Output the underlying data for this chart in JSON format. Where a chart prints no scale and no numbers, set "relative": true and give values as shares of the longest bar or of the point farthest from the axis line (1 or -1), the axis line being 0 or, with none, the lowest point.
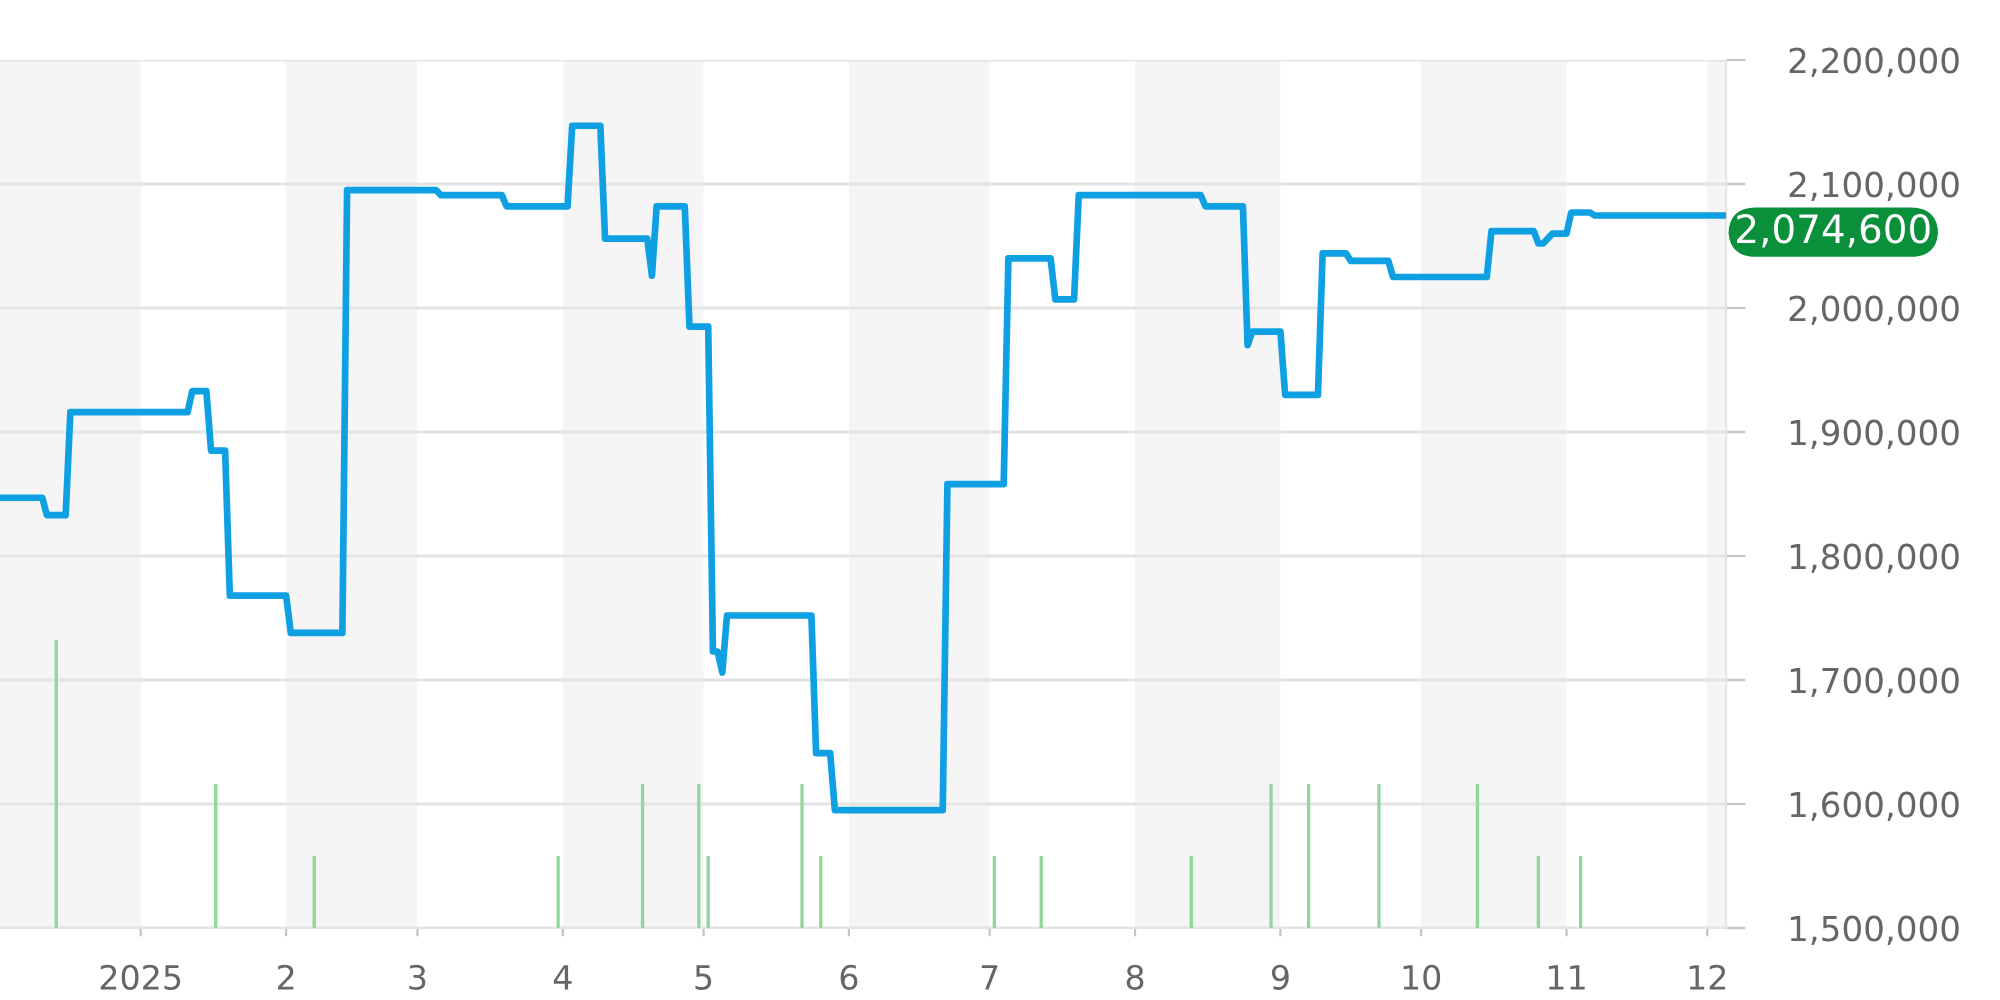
{
  "chart_data": [
    {
      "type": "line",
      "x": [
        "2024-12-02",
        "2024-12-11",
        "2024-12-12",
        "2024-12-16",
        "2024-12-17",
        "2025-01-11",
        "2025-01-12",
        "2025-01-15",
        "2025-01-16",
        "2025-01-19",
        "2025-01-20",
        "2025-02-01",
        "2025-02-02",
        "2025-02-13",
        "2025-02-14",
        "2025-03-05",
        "2025-03-06",
        "2025-03-19",
        "2025-03-20",
        "2025-04-02",
        "2025-04-03",
        "2025-04-09",
        "2025-04-10",
        "2025-04-19",
        "2025-04-20",
        "2025-04-21",
        "2025-04-27",
        "2025-04-28",
        "2025-05-02",
        "2025-05-03",
        "2025-05-04",
        "2025-05-05",
        "2025-05-06",
        "2025-05-24",
        "2025-05-25",
        "2025-05-28",
        "2025-05-29",
        "2025-06-21",
        "2025-06-22",
        "2025-07-04",
        "2025-07-05",
        "2025-07-14",
        "2025-07-15",
        "2025-07-19",
        "2025-07-20",
        "2025-08-15",
        "2025-08-16",
        "2025-08-24",
        "2025-08-25",
        "2025-08-26",
        "2025-09-01",
        "2025-09-02",
        "2025-09-09",
        "2025-09-10",
        "2025-09-15",
        "2025-09-16",
        "2025-09-24",
        "2025-09-25",
        "2025-10-15",
        "2025-10-16",
        "2025-10-25",
        "2025-10-26",
        "2025-10-27",
        "2025-10-29",
        "2025-11-01",
        "2025-11-02",
        "2025-11-06",
        "2025-11-07",
        "2025-12-05"
      ],
      "series": [
        {
          "color": "#0fa0e3",
          "values": [
            1847000,
            1847000,
            1833000,
            1833000,
            1916000,
            1916000,
            1933000,
            1933000,
            1885000,
            1885000,
            1768000,
            1768000,
            1738000,
            1738000,
            2095000,
            2095000,
            2091000,
            2091000,
            2082000,
            2082000,
            2147000,
            2147000,
            2056000,
            2056000,
            2026000,
            2082000,
            2082000,
            1985000,
            1985000,
            1723000,
            1723000,
            1706000,
            1752000,
            1752000,
            1641000,
            1641000,
            1595000,
            1595000,
            1858000,
            1858000,
            2040000,
            2040000,
            2007000,
            2007000,
            2091000,
            2091000,
            2082000,
            2082000,
            1970000,
            1981000,
            1981000,
            1930000,
            1930000,
            2044000,
            2044000,
            2038000,
            2038000,
            2025000,
            2025000,
            2062000,
            2062000,
            2052000,
            2052000,
            2060000,
            2060000,
            2077000,
            2077000,
            2074600,
            2074600
          ]
        }
      ],
      "xlim": [
        "2024-12-02",
        "2025-12-05"
      ],
      "xticks": [
        {
          "value": "2025-01-01",
          "label": "2025"
        },
        {
          "value": "2025-02-01",
          "label": "2"
        },
        {
          "value": "2025-03-01",
          "label": "3"
        },
        {
          "value": "2025-04-01",
          "label": "4"
        },
        {
          "value": "2025-05-01",
          "label": "5"
        },
        {
          "value": "2025-06-01",
          "label": "6"
        },
        {
          "value": "2025-07-01",
          "label": "7"
        },
        {
          "value": "2025-08-01",
          "label": "8"
        },
        {
          "value": "2025-09-01",
          "label": "9"
        },
        {
          "value": "2025-10-01",
          "label": "10"
        },
        {
          "value": "2025-11-01",
          "label": "11"
        },
        {
          "value": "2025-12-01",
          "label": "12"
        }
      ],
      "ylim": [
        1500000,
        2200000
      ],
      "yticks": [
        {
          "value": 1500000,
          "label": "1,500,000"
        },
        {
          "value": 1600000,
          "label": "1,600,000"
        },
        {
          "value": 1700000,
          "label": "1,700,000"
        },
        {
          "value": 1800000,
          "label": "1,800,000"
        },
        {
          "value": 1900000,
          "label": "1,900,000"
        },
        {
          "value": 2000000,
          "label": "2,000,000"
        },
        {
          "value": 2100000,
          "label": "2,100,000"
        },
        {
          "value": 2200000,
          "label": "2,200,000"
        }
      ],
      "grid": "y",
      "bands": [
        {
          "axis": "x",
          "from": "2024-12-02",
          "to": "2025-01-01",
          "color": "#f5f5f5"
        },
        {
          "axis": "x",
          "from": "2025-02-01",
          "to": "2025-03-01",
          "color": "#f5f5f5"
        },
        {
          "axis": "x",
          "from": "2025-04-01",
          "to": "2025-05-01",
          "color": "#f5f5f5"
        },
        {
          "axis": "x",
          "from": "2025-06-01",
          "to": "2025-07-01",
          "color": "#f5f5f5"
        },
        {
          "axis": "x",
          "from": "2025-08-01",
          "to": "2025-09-01",
          "color": "#f5f5f5"
        },
        {
          "axis": "x",
          "from": "2025-10-01",
          "to": "2025-11-01",
          "color": "#f5f5f5"
        },
        {
          "axis": "x",
          "from": "2025-12-01",
          "to": "2025-12-05",
          "color": "#f5f5f5"
        }
      ],
      "annotations": [
        {
          "text": "2,074,600",
          "x": "2025-12-05",
          "y": 2074600
        }
      ]
    },
    {
      "type": "bar",
      "x": [
        "2024-12-14",
        "2025-01-17",
        "2025-02-07",
        "2025-03-31",
        "2025-04-18",
        "2025-04-30",
        "2025-05-02",
        "2025-05-22",
        "2025-05-26",
        "2025-07-02",
        "2025-07-12",
        "2025-08-13",
        "2025-08-30",
        "2025-09-07",
        "2025-09-22",
        "2025-10-13",
        "2025-10-26",
        "2025-11-04"
      ],
      "values": [
        1,
        0.5,
        0.25,
        0.25,
        0.5,
        0.5,
        0.25,
        0.5,
        0.25,
        0.25,
        0.25,
        0.25,
        0.5,
        0.5,
        0.5,
        0.5,
        0.25,
        0.25
      ],
      "color": "#91d69b",
      "relative": true,
      "xlim": [
        "2024-12-02",
        "2025-12-05"
      ],
      "tick_labels": false
    }
  ]
}
